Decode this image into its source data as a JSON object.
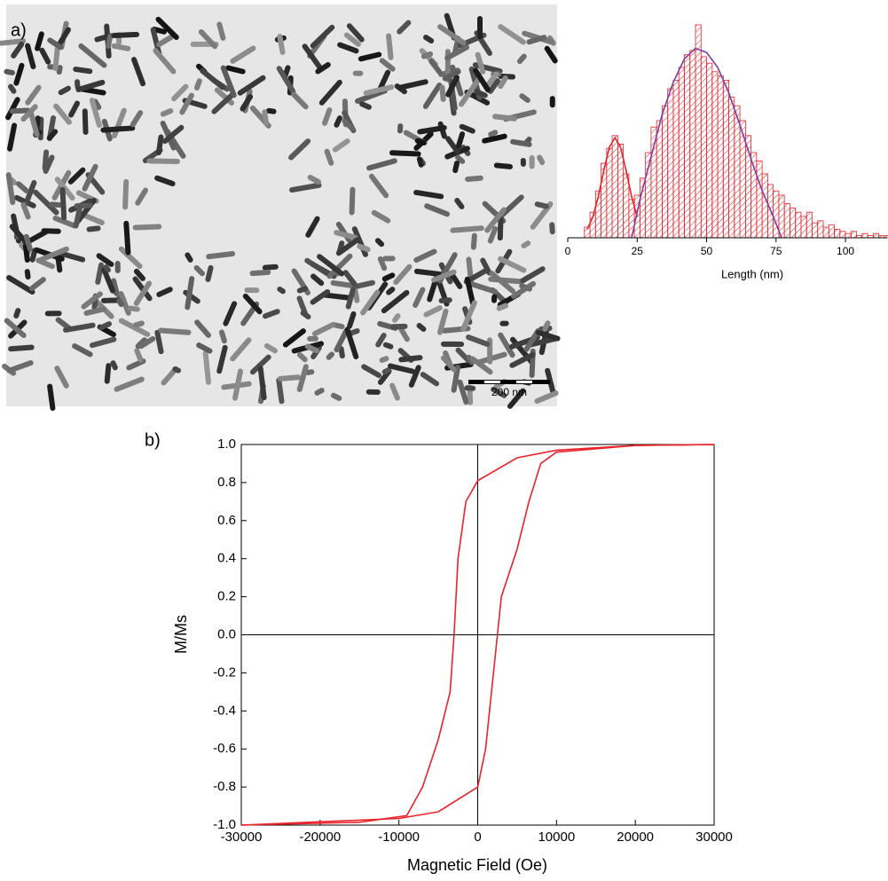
{
  "image": {
    "scale_bar": "200 nm"
  },
  "chart_data": [
    {
      "type": "histogram",
      "label": "a)",
      "xlabel": "Length (nm)",
      "bins": [
        6,
        8,
        10,
        12,
        14,
        16,
        18,
        20,
        22,
        24,
        26,
        28,
        30,
        32,
        34,
        36,
        38,
        40,
        42,
        44,
        46,
        48,
        50,
        52,
        54,
        56,
        58,
        60,
        62,
        64,
        66,
        68,
        70,
        72,
        74,
        76,
        78,
        80,
        82,
        84,
        86,
        88,
        90,
        92,
        94,
        96,
        98,
        100,
        102,
        104,
        106,
        108,
        110,
        112,
        114,
        116
      ],
      "values": [
        5,
        12,
        22,
        35,
        42,
        48,
        44,
        30,
        18,
        20,
        28,
        40,
        52,
        55,
        62,
        70,
        74,
        80,
        86,
        88,
        100,
        85,
        82,
        78,
        76,
        74,
        66,
        62,
        55,
        48,
        40,
        36,
        30,
        25,
        22,
        20,
        16,
        14,
        12,
        10,
        12,
        7,
        8,
        5,
        6,
        4,
        3,
        2,
        3,
        1,
        2,
        1,
        2,
        1,
        1
      ],
      "color": "#e8232a",
      "fits": [
        {
          "color": "#e8232a",
          "x": [
            7,
            9,
            11,
            13,
            15,
            17,
            19,
            21,
            23,
            25
          ],
          "values": [
            4,
            9.7,
            19.3,
            31.7,
            42.6,
            47,
            42.6,
            31.7,
            19.3,
            9.7
          ]
        },
        {
          "color": "#7b3fa0",
          "x": [
            23,
            26,
            30,
            34,
            38,
            42,
            46,
            50,
            54,
            58,
            62,
            66,
            70,
            74,
            77
          ],
          "values": [
            0,
            18,
            38,
            58,
            73,
            84,
            89,
            87,
            80,
            68,
            53,
            37,
            22,
            10,
            0
          ]
        }
      ],
      "xlim": [
        0,
        115
      ],
      "ylim": [
        0,
        100
      ],
      "xticks": [
        0,
        25,
        50,
        75,
        100
      ]
    },
    {
      "type": "line",
      "label": "b)",
      "xlabel": "Magnetic Field (Oe)",
      "ylabel": "M/Ms",
      "series": [
        {
          "color": "#e8232a",
          "x": [
            30000,
            20000,
            10000,
            5000,
            0,
            -1500,
            -2500,
            -3000,
            -3500,
            -5000,
            -7000,
            -9000,
            -15000,
            -30000
          ],
          "values": [
            1,
            0.995,
            0.97,
            0.93,
            0.81,
            0.7,
            0.4,
            0,
            -0.3,
            -0.55,
            -0.8,
            -0.95,
            -0.985,
            -1
          ]
        },
        {
          "color": "#e8232a",
          "x": [
            -30000,
            -10000,
            -5000,
            0,
            1000,
            2000,
            3000,
            5000,
            6500,
            8000,
            10000,
            20000,
            30000
          ],
          "values": [
            -1,
            -0.965,
            -0.93,
            -0.8,
            -0.6,
            -0.2,
            0.2,
            0.45,
            0.7,
            0.9,
            0.96,
            0.995,
            1
          ]
        }
      ],
      "xlim": [
        -30000,
        30000
      ],
      "ylim": [
        -1,
        1
      ],
      "xticks": [
        -30000,
        -20000,
        -10000,
        0,
        10000,
        20000,
        30000
      ],
      "yticks": [
        {
          "value": -1,
          "label": "-1.0"
        },
        -0.8,
        -0.6,
        -0.4,
        -0.2,
        {
          "value": 0,
          "label": "0.0"
        },
        0.2,
        0.4,
        0.6,
        0.8,
        {
          "value": 1,
          "label": "1.0"
        }
      ]
    }
  ]
}
